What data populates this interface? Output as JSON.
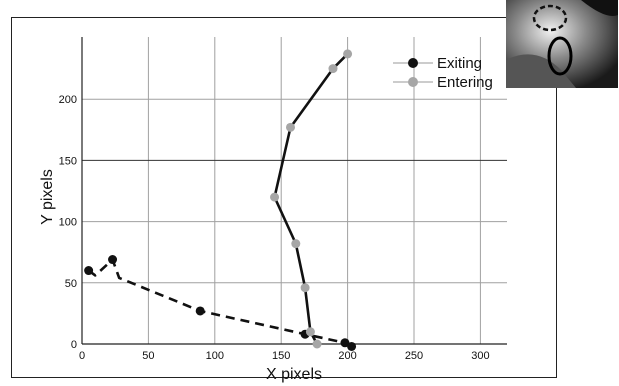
{
  "chart_data": {
    "type": "line",
    "xlabel": "X pixels",
    "ylabel": "Y pixels",
    "xlim": [
      0,
      320
    ],
    "ylim": [
      0,
      240
    ],
    "x_ticks": [
      0,
      50,
      100,
      150,
      200,
      250,
      300
    ],
    "y_ticks": [
      0,
      50,
      100,
      150,
      200
    ],
    "grid": true,
    "legend_position": "top-right",
    "series": [
      {
        "name": "Exiting",
        "color": "#111111",
        "line_style": "dashed",
        "marker_color": "#111111",
        "points": [
          [
            5,
            60
          ],
          [
            10,
            56
          ],
          [
            23,
            69
          ],
          [
            28,
            54
          ],
          [
            89,
            27
          ],
          [
            168,
            8
          ],
          [
            198,
            1
          ],
          [
            203,
            -2
          ]
        ]
      },
      {
        "name": "Entering",
        "color": "#111111",
        "line_style": "solid",
        "marker_color": "#a6a6a6",
        "points": [
          [
            200,
            237
          ],
          [
            189,
            225
          ],
          [
            157,
            177
          ],
          [
            145,
            120
          ],
          [
            161,
            82
          ],
          [
            168,
            46
          ],
          [
            172,
            10
          ],
          [
            177,
            0
          ]
        ]
      }
    ]
  },
  "inset": {
    "icon": "video-frame-thumbnail-icon"
  }
}
